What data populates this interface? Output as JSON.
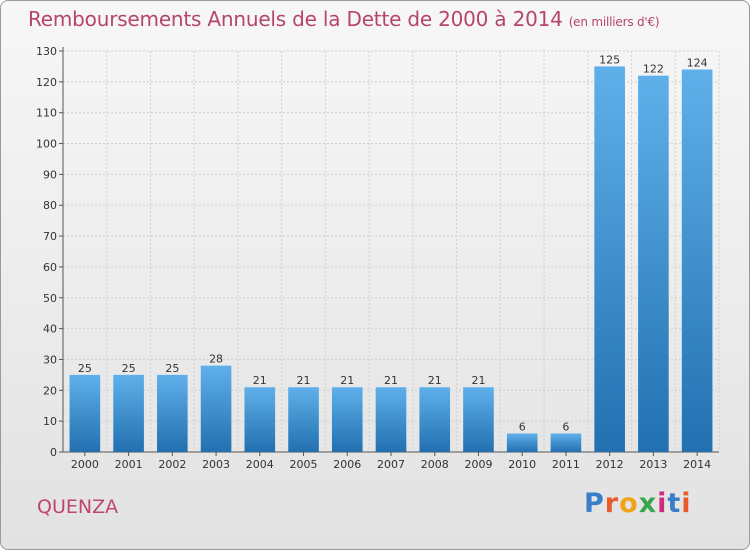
{
  "header": {
    "title": "Remboursements Annuels de la Dette de 2000 à 2014",
    "unit": "(en milliers d'€)"
  },
  "footer": {
    "commune": "QUENZA",
    "logo_letters": [
      "P",
      "r",
      "o",
      "x",
      "i",
      "t",
      "i"
    ],
    "logo_colors": [
      "#3a7dc9",
      "#e85b2a",
      "#f0a21a",
      "#3aa64c",
      "#d02a7a",
      "#3a7dc9",
      "#e85b2a"
    ]
  },
  "colors": {
    "bar_top": "#5fb0ea",
    "bar_bottom": "#2270b0",
    "title": "#b5446e"
  },
  "chart_data": {
    "type": "bar",
    "title": "Remboursements Annuels de la Dette de 2000 à 2014",
    "ylabel": "(en milliers d'€)",
    "xlabel": "",
    "categories": [
      "2000",
      "2001",
      "2002",
      "2003",
      "2004",
      "2005",
      "2006",
      "2007",
      "2008",
      "2009",
      "2010",
      "2011",
      "2012",
      "2013",
      "2014"
    ],
    "values": [
      25,
      25,
      25,
      28,
      21,
      21,
      21,
      21,
      21,
      21,
      6,
      6,
      125,
      122,
      124
    ],
    "ylim": [
      0,
      130
    ],
    "yticks": [
      0,
      10,
      20,
      30,
      40,
      50,
      60,
      70,
      80,
      90,
      100,
      110,
      120,
      130
    ],
    "grid": true
  }
}
